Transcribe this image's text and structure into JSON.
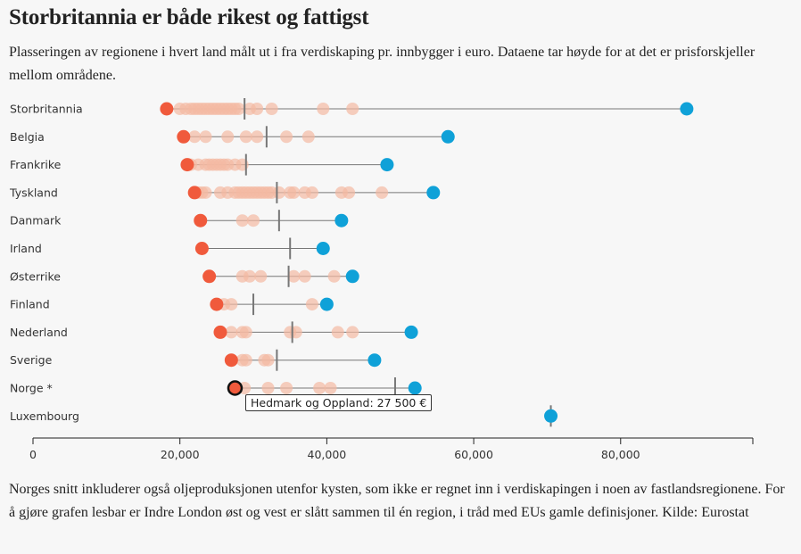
{
  "title": "Storbritannia er både rikest og fattigst",
  "subtitle": "Plasseringen av regionene i hvert land målt ut i fra verdiskaping pr. innbygger i euro. Dataene tar høyde for at det er prisforskjeller mellom områdene.",
  "footnote": "Norges snitt inkluderer også oljeproduksjonen utenfor kysten, som ikke er regnet inn i verdiskapingen i noen av fastlandsregionene. For å gjøre grafen lesbar er Indre London øst og vest er slått sammen til én region, i tråd med EUs gamle definisjoner. Kilde: Eurostat",
  "tooltip": "Hedmark og Oppland: 27 500 €",
  "colors": {
    "min": "#f05a3c",
    "max": "#0fa1d8",
    "mid": "#f3b9a2",
    "avg": "#777777",
    "line": "#777777",
    "background": "#f7f7f7"
  },
  "chart_data": {
    "type": "dot-range",
    "xlim": [
      0,
      98000
    ],
    "xticks": [
      0,
      20000,
      40000,
      60000,
      80000
    ],
    "xtick_labels": [
      "0",
      "20,000",
      "40,000",
      "60,000",
      "80,000"
    ],
    "rows": [
      {
        "country": "Storbritannia",
        "min": 18200,
        "max": 89000,
        "avg": 28800,
        "regions": [
          20000,
          20800,
          21500,
          22000,
          22500,
          23000,
          23500,
          24000,
          24500,
          25000,
          25500,
          26000,
          26500,
          27000,
          27500,
          28000,
          29500,
          30500,
          32500,
          39500,
          43500
        ]
      },
      {
        "country": "Belgia",
        "min": 20500,
        "max": 56500,
        "avg": 31800,
        "regions": [
          22000,
          23500,
          26500,
          29000,
          30500,
          34500,
          37500
        ]
      },
      {
        "country": "Frankrike",
        "min": 21000,
        "max": 48200,
        "avg": 29000,
        "regions": [
          21500,
          22500,
          23500,
          24000,
          24500,
          25000,
          25500,
          26000,
          26500,
          27500,
          28500
        ]
      },
      {
        "country": "Tyskland",
        "min": 22000,
        "max": 54500,
        "avg": 33200,
        "regions": [
          22500,
          23000,
          23500,
          25500,
          26500,
          27500,
          28000,
          28500,
          29000,
          29500,
          30000,
          30500,
          31000,
          31500,
          32000,
          32500,
          33500,
          35000,
          35500,
          37000,
          38000,
          42000,
          43000,
          47500
        ]
      },
      {
        "country": "Danmark",
        "min": 22800,
        "max": 42000,
        "avg": 33500,
        "regions": [
          28500,
          30000
        ]
      },
      {
        "country": "Irland",
        "min": 23000,
        "max": 39500,
        "avg": 35000,
        "regions": []
      },
      {
        "country": "Østerrike",
        "min": 24000,
        "max": 43500,
        "avg": 34800,
        "regions": [
          28500,
          29500,
          31000,
          35500,
          37000,
          41000
        ]
      },
      {
        "country": "Finland",
        "min": 25000,
        "max": 40000,
        "avg": 30000,
        "regions": [
          26000,
          27000,
          38000
        ]
      },
      {
        "country": "Nederland",
        "min": 25500,
        "max": 51500,
        "avg": 35300,
        "regions": [
          27000,
          28500,
          29000,
          35000,
          35800,
          41500,
          43500
        ]
      },
      {
        "country": "Sverige",
        "min": 27000,
        "max": 46500,
        "avg": 33200,
        "regions": [
          28500,
          29000,
          31500,
          32000
        ]
      },
      {
        "country": "Norge *",
        "min": 27500,
        "max": 52000,
        "avg": 49300,
        "regions": [
          28800,
          32000,
          34500,
          39000,
          40500
        ],
        "highlight": "min"
      },
      {
        "country": "Luxembourg",
        "min": null,
        "max": 70500,
        "avg": 70500,
        "regions": []
      }
    ]
  }
}
